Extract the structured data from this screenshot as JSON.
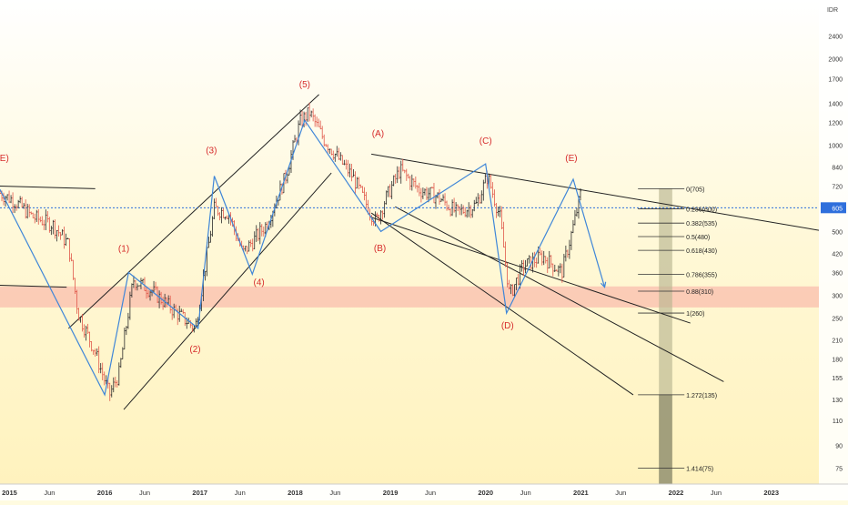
{
  "chart_data": {
    "type": "candlestick",
    "title": "",
    "ylabel": "",
    "xlabel": "",
    "currency": "IDR",
    "price_scale": "log",
    "y_axis_ticks": [
      2400,
      2000,
      1700,
      1400,
      1200,
      1000,
      840,
      720,
      600,
      500,
      420,
      360,
      300,
      250,
      210,
      180,
      155,
      130,
      110,
      90,
      75
    ],
    "x_axis_ticks": [
      "2015",
      "Jun",
      "2016",
      "Jun",
      "2017",
      "Jun",
      "2018",
      "Jun",
      "2019",
      "Jun",
      "2020",
      "Jun",
      "2021",
      "Jun",
      "2022",
      "Jun",
      "2023"
    ],
    "x_tick_dates": [
      2015.0,
      2015.42,
      2016.0,
      2016.42,
      2017.0,
      2017.42,
      2018.0,
      2018.42,
      2019.0,
      2019.42,
      2020.0,
      2020.42,
      2021.0,
      2021.42,
      2022.0,
      2022.42,
      2023.0
    ],
    "x_range": [
      2014.9,
      2023.5
    ],
    "y_range": [
      66,
      3200
    ],
    "current_price": {
      "value": 605,
      "label": "605"
    },
    "support_zone": {
      "low": 272,
      "high": 322
    },
    "price_path": [
      [
        2014.9,
        680
      ],
      [
        2015.05,
        640
      ],
      [
        2015.25,
        560
      ],
      [
        2015.45,
        530
      ],
      [
        2015.62,
        450
      ],
      [
        2015.72,
        260
      ],
      [
        2015.9,
        190
      ],
      [
        2016.05,
        135
      ],
      [
        2016.15,
        160
      ],
      [
        2016.3,
        340
      ],
      [
        2016.5,
        310
      ],
      [
        2016.7,
        270
      ],
      [
        2016.95,
        230
      ],
      [
        2017.15,
        600
      ],
      [
        2017.3,
        580
      ],
      [
        2017.45,
        420
      ],
      [
        2017.7,
        530
      ],
      [
        2017.9,
        780
      ],
      [
        2018.05,
        1200
      ],
      [
        2018.15,
        1300
      ],
      [
        2018.3,
        1050
      ],
      [
        2018.45,
        900
      ],
      [
        2018.6,
        780
      ],
      [
        2018.75,
        620
      ],
      [
        2018.85,
        540
      ],
      [
        2018.95,
        650
      ],
      [
        2019.1,
        820
      ],
      [
        2019.3,
        700
      ],
      [
        2019.5,
        660
      ],
      [
        2019.7,
        580
      ],
      [
        2019.9,
        620
      ],
      [
        2020.02,
        780
      ],
      [
        2020.15,
        560
      ],
      [
        2020.25,
        300
      ],
      [
        2020.4,
        380
      ],
      [
        2020.6,
        410
      ],
      [
        2020.8,
        360
      ],
      [
        2020.92,
        520
      ],
      [
        2021.0,
        680
      ]
    ],
    "fibonacci": [
      {
        "label": "0(705)",
        "value": 705
      },
      {
        "label": "0.236(600)",
        "value": 600
      },
      {
        "label": "0.382(535)",
        "value": 535
      },
      {
        "label": "0.5(480)",
        "value": 480
      },
      {
        "label": "0.618(430)",
        "value": 430
      },
      {
        "label": "0.786(355)",
        "value": 355
      },
      {
        "label": "0.88(310)",
        "value": 310
      },
      {
        "label": "1(260)",
        "value": 260
      },
      {
        "label": "1.272(135)",
        "value": 135
      },
      {
        "label": "1.414(75)",
        "value": 75
      }
    ],
    "wave_labels": [
      {
        "text": "(E)",
        "date": 2014.93,
        "price": 880
      },
      {
        "text": "(1)",
        "date": 2016.2,
        "price": 425
      },
      {
        "text": "(2)",
        "date": 2016.95,
        "price": 190
      },
      {
        "text": "(3)",
        "date": 2017.12,
        "price": 935
      },
      {
        "text": "(4)",
        "date": 2017.62,
        "price": 325
      },
      {
        "text": "(5)",
        "date": 2018.1,
        "price": 1590
      },
      {
        "text": "(A)",
        "date": 2018.87,
        "price": 1070
      },
      {
        "text": "(B)",
        "date": 2018.89,
        "price": 428
      },
      {
        "text": "(C)",
        "date": 2020.0,
        "price": 1010
      },
      {
        "text": "(D)",
        "date": 2020.23,
        "price": 230
      },
      {
        "text": "(E)",
        "date": 2020.9,
        "price": 880
      }
    ],
    "trend_lines": [
      {
        "from": [
          2014.9,
          720
        ],
        "to": [
          2015.9,
          705
        ]
      },
      {
        "from": [
          2014.9,
          325
        ],
        "to": [
          2015.6,
          320
        ]
      },
      {
        "from": [
          2015.62,
          230
        ],
        "to": [
          2018.25,
          1500
        ]
      },
      {
        "from": [
          2016.2,
          120
        ],
        "to": [
          2018.38,
          800
        ]
      },
      {
        "from": [
          2018.8,
          930
        ],
        "to": [
          2023.5,
          505
        ]
      },
      {
        "from": [
          2018.8,
          580
        ],
        "to": [
          2021.55,
          135
        ]
      },
      {
        "from": [
          2018.8,
          560
        ],
        "to": [
          2022.15,
          240
        ]
      },
      {
        "from": [
          2019.05,
          610
        ],
        "to": [
          2022.5,
          150
        ]
      }
    ],
    "wave_path": [
      [
        2014.9,
        700
      ],
      [
        2016.0,
        135
      ],
      [
        2016.25,
        360
      ],
      [
        2016.98,
        230
      ],
      [
        2017.15,
        780
      ],
      [
        2017.55,
        355
      ],
      [
        2018.1,
        1220
      ],
      [
        2018.9,
        500
      ],
      [
        2020.0,
        860
      ],
      [
        2020.22,
        260
      ],
      [
        2020.92,
        760
      ],
      [
        2021.25,
        320
      ]
    ]
  }
}
